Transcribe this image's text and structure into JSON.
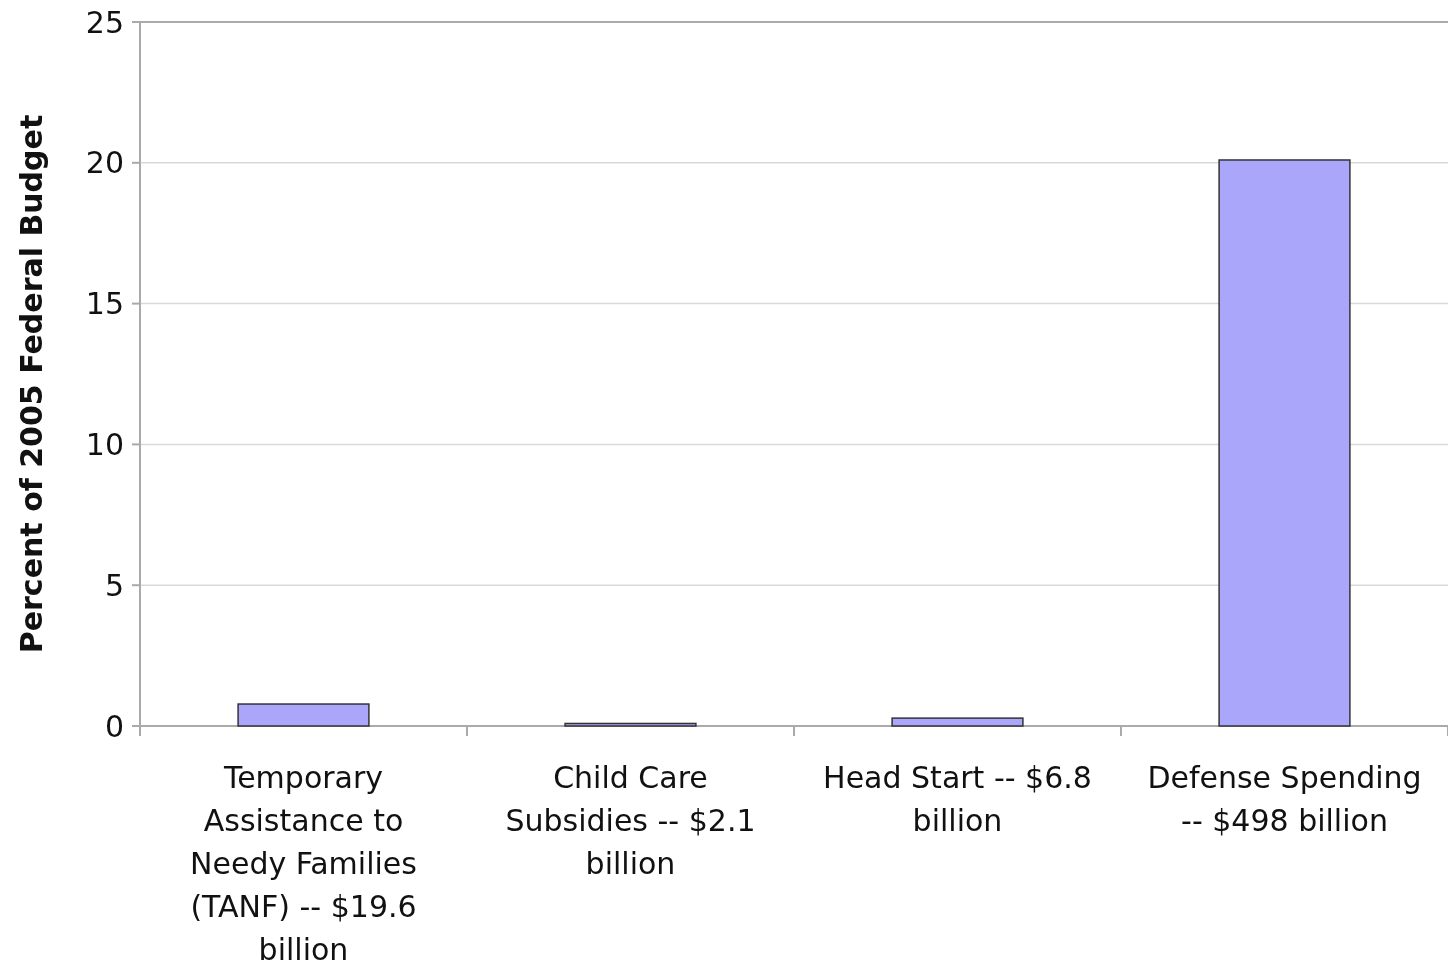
{
  "chart_data": {
    "type": "bar",
    "ylabel": "Percent of 2005 Federal Budget",
    "categories": [
      "Temporary Assistance to Needy Families (TANF) -- $19.6 billion",
      "Child Care Subsidies -- $2.1 billion",
      "Head Start -- $6.8 billion",
      "Defense Spending -- $498 billion"
    ],
    "values": [
      0.78,
      0.09,
      0.28,
      20.1
    ],
    "color": "#aaa6fa",
    "ylim": [
      0,
      25
    ],
    "yticks": [
      0,
      5,
      10,
      15,
      20,
      25
    ],
    "grid": "y"
  }
}
